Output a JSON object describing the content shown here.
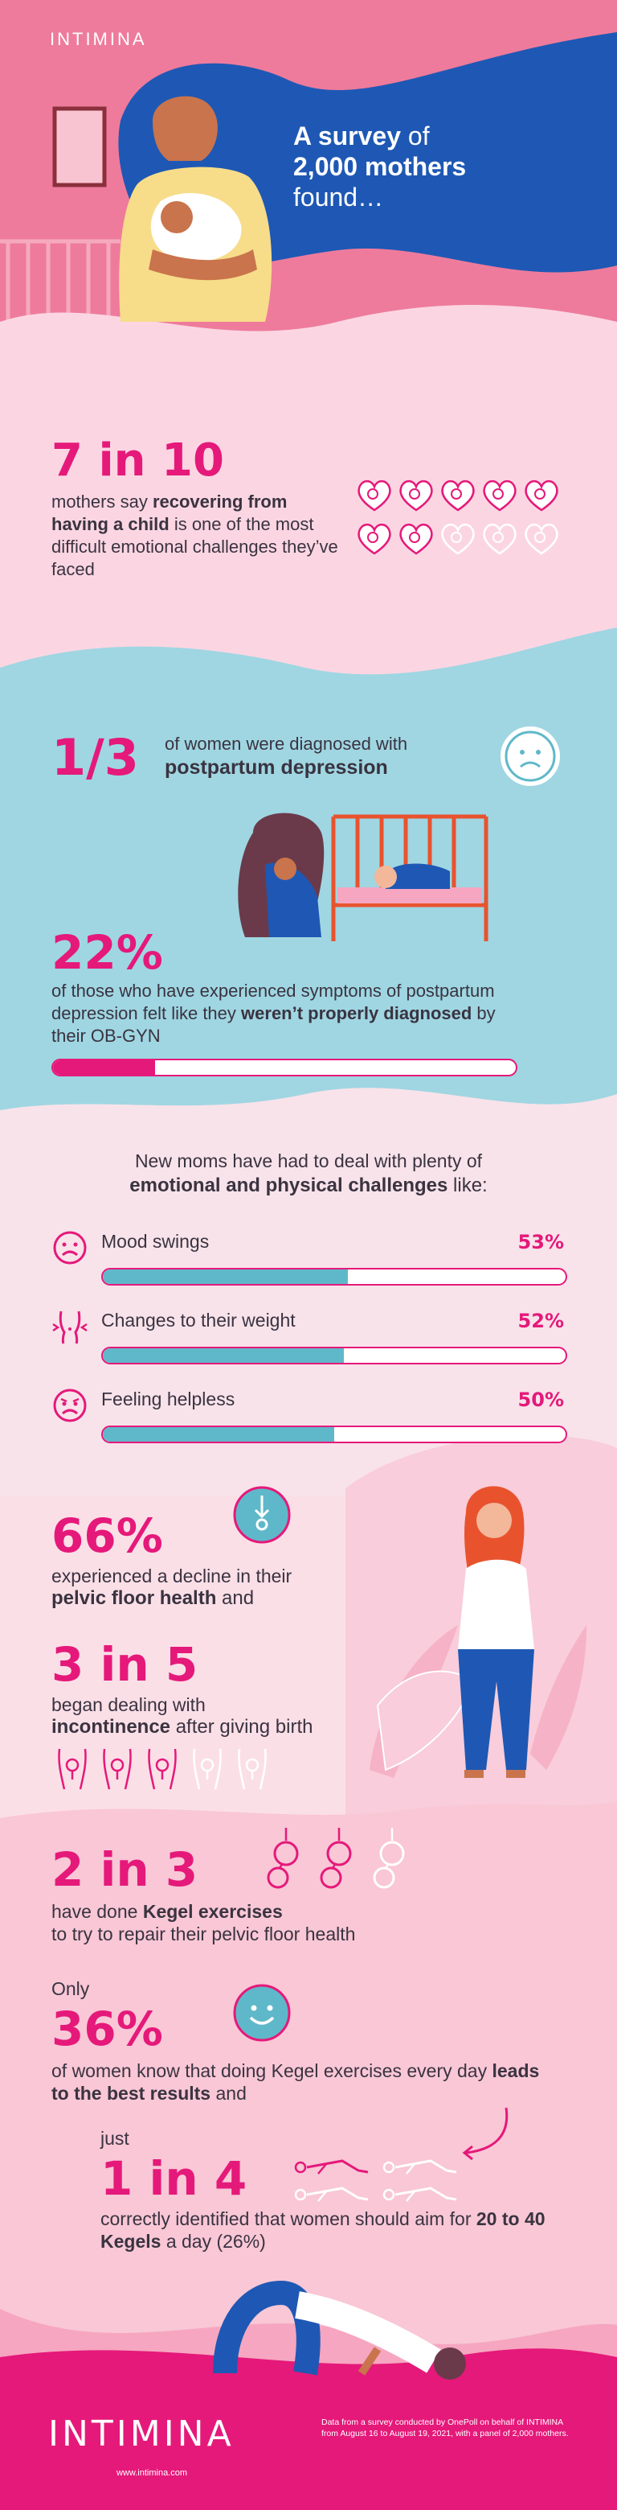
{
  "brand": {
    "logo_top": "INTIMINA",
    "logo_bottom": "INTIMINA",
    "website": "www.intimina.com"
  },
  "header": {
    "line1_bold": "A survey",
    "line1_rest": " of",
    "line2": "2,000 mothers",
    "line3": "found…"
  },
  "stat1": {
    "headline": "7 in 10",
    "text_pre": "mothers say ",
    "text_bold": "recovering from having a child",
    "text_post": " is one of the most difficult emotional challenges they’ve faced",
    "filled": 7,
    "total": 10
  },
  "stat2": {
    "headline": "1/3",
    "text_pre": "of women were diagnosed with",
    "text_bold": "postpartum depression"
  },
  "stat3": {
    "headline": "22%",
    "text_pre": "of those who have experienced symptoms of postpartum depression  felt like they ",
    "text_bold": "weren’t properly diagnosed",
    "text_post": " by their OB-GYN",
    "value": 0.22
  },
  "challenges": {
    "intro_pre": "New moms have had to deal with plenty of",
    "intro_bold": "emotional and physical challenges",
    "intro_post": " like:",
    "items": [
      {
        "label": "Mood swings",
        "pct": "53%",
        "value": 0.53,
        "icon": "sad-face-icon"
      },
      {
        "label": "Changes to their weight",
        "pct": "52%",
        "value": 0.52,
        "icon": "body-silhouette-icon"
      },
      {
        "label": "Feeling helpless",
        "pct": "50%",
        "value": 0.5,
        "icon": "upset-face-icon"
      }
    ]
  },
  "stat4": {
    "headline": "66%",
    "text_pre": "experienced a decline in their",
    "text_bold": "pelvic floor health",
    "text_post": " and"
  },
  "stat5": {
    "headline": "3 in 5",
    "text_pre": "began dealing with",
    "text_bold": "incontinence",
    "text_post": " after giving birth",
    "filled": 3,
    "total": 5
  },
  "stat6": {
    "headline": "2 in 3",
    "text_pre": "have done ",
    "text_bold": "Kegel exercises",
    "text_post": "to try to repair their pelvic floor health",
    "filled": 2,
    "total": 3
  },
  "stat7": {
    "pre_headline": "Only",
    "headline": "36%",
    "text_pre": "of women know that doing Kegel exercises every day ",
    "text_bold": "leads to the best results",
    "text_post": " and"
  },
  "stat8": {
    "pre_headline": "just",
    "headline": "1 in 4",
    "text_pre": "correctly identified that women should aim for ",
    "text_bold": "20 to 40 Kegels",
    "text_post": " a day (26%)",
    "filled": 1,
    "total": 4
  },
  "footer": {
    "source": "Data from a survey conducted by OnePoll on behalf of INTIMINA from August 16 to August 19, 2021, with a panel of 2,000 mothers."
  },
  "colors": {
    "magenta": "#e5197a",
    "blue": "#1e58b4",
    "teal": "#5fb8c9",
    "lightblue": "#9fd6e2",
    "pink_light": "#fbd6e2"
  }
}
